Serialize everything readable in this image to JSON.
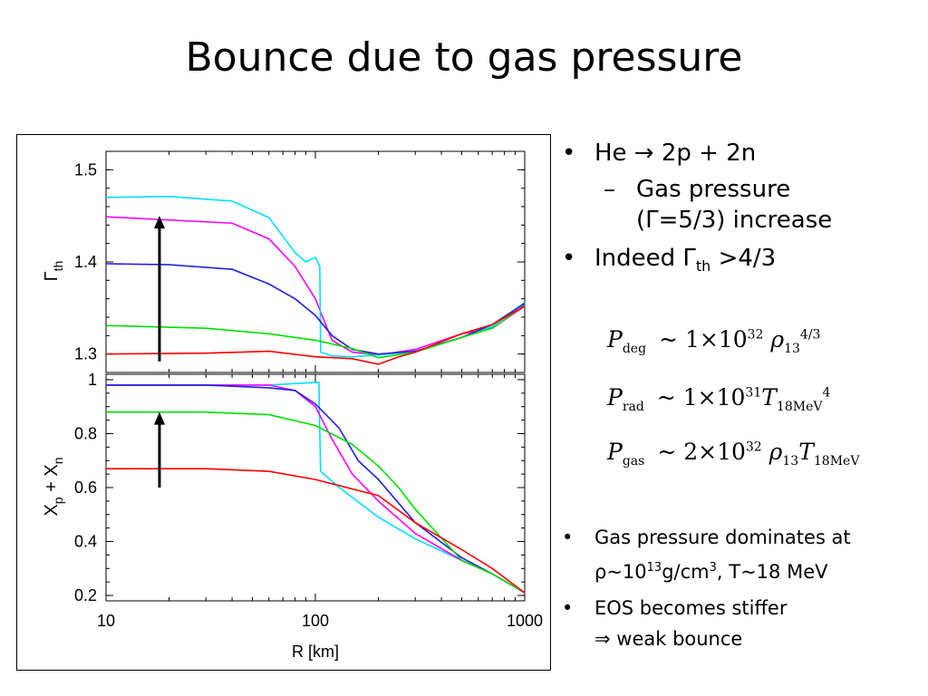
{
  "title": "Bounce due to gas pressure",
  "chart_data": [
    {
      "type": "line",
      "ylabel": "Γ_th",
      "ylim": [
        1.28,
        1.52
      ],
      "yticks": [
        "1.3",
        "1.4",
        "1.5"
      ],
      "xscale": "log",
      "xlim": [
        10,
        1000
      ],
      "series": [
        {
          "color": "#ff00ff",
          "x": [
            10,
            40,
            60,
            80,
            100,
            120,
            150,
            200,
            300,
            500,
            700,
            1000
          ],
          "y": [
            1.449,
            1.442,
            1.425,
            1.395,
            1.36,
            1.315,
            1.302,
            1.299,
            1.305,
            1.322,
            1.328,
            1.352
          ]
        },
        {
          "color": "#00e0ff",
          "x": [
            10,
            20,
            40,
            60,
            80,
            90,
            100,
            105,
            106,
            120,
            150,
            200,
            300,
            500,
            700,
            1000
          ],
          "y": [
            1.47,
            1.471,
            1.466,
            1.448,
            1.41,
            1.4,
            1.405,
            1.395,
            1.302,
            1.298,
            1.297,
            1.299,
            1.303,
            1.318,
            1.33,
            1.356
          ]
        },
        {
          "color": "#2020e0",
          "x": [
            10,
            20,
            40,
            60,
            80,
            100,
            120,
            150,
            200,
            300,
            500,
            700,
            1000
          ],
          "y": [
            1.398,
            1.397,
            1.392,
            1.376,
            1.36,
            1.342,
            1.32,
            1.305,
            1.3,
            1.303,
            1.318,
            1.332,
            1.355
          ]
        },
        {
          "color": "#00e000",
          "x": [
            10,
            30,
            60,
            100,
            150,
            200,
            300,
            500,
            700,
            1000
          ],
          "y": [
            1.331,
            1.328,
            1.322,
            1.315,
            1.306,
            1.296,
            1.302,
            1.318,
            1.328,
            1.353
          ]
        },
        {
          "color": "#ff0000",
          "x": [
            10,
            30,
            60,
            100,
            150,
            200,
            250,
            300,
            500,
            700,
            1000
          ],
          "y": [
            1.3,
            1.301,
            1.303,
            1.297,
            1.295,
            1.289,
            1.297,
            1.302,
            1.322,
            1.332,
            1.352
          ]
        }
      ]
    },
    {
      "type": "line",
      "ylabel": "X_p + X_n",
      "xlabel": "R [km]",
      "xscale": "log",
      "xlim": [
        10,
        1000
      ],
      "ylim": [
        0.18,
        1.02
      ],
      "yticks": [
        "0.2",
        "0.4",
        "0.6",
        "0.8",
        "1"
      ],
      "xticks": [
        "10",
        "100",
        "1000"
      ],
      "series": [
        {
          "color": "#00e0ff",
          "x": [
            10,
            30,
            60,
            100,
            104,
            105,
            106,
            130,
            200,
            300,
            500,
            700,
            1000
          ],
          "y": [
            0.98,
            0.98,
            0.98,
            0.99,
            0.99,
            0.8,
            0.66,
            0.6,
            0.49,
            0.41,
            0.33,
            0.28,
            0.21
          ]
        },
        {
          "color": "#ff00ff",
          "x": [
            10,
            30,
            60,
            80,
            100,
            120,
            150,
            200,
            300,
            500,
            700,
            1000
          ],
          "y": [
            0.98,
            0.98,
            0.98,
            0.96,
            0.9,
            0.78,
            0.65,
            0.55,
            0.43,
            0.33,
            0.28,
            0.21
          ]
        },
        {
          "color": "#2020e0",
          "x": [
            10,
            30,
            60,
            80,
            100,
            130,
            160,
            200,
            300,
            500,
            700,
            1000
          ],
          "y": [
            0.98,
            0.98,
            0.97,
            0.96,
            0.91,
            0.82,
            0.7,
            0.63,
            0.47,
            0.34,
            0.28,
            0.21
          ]
        },
        {
          "color": "#00e000",
          "x": [
            10,
            30,
            60,
            100,
            150,
            200,
            250,
            300,
            500,
            700,
            1000
          ],
          "y": [
            0.88,
            0.88,
            0.87,
            0.83,
            0.76,
            0.68,
            0.6,
            0.52,
            0.33,
            0.28,
            0.21
          ]
        },
        {
          "color": "#ff0000",
          "x": [
            10,
            30,
            60,
            100,
            200,
            300,
            500,
            700,
            1000
          ],
          "y": [
            0.67,
            0.67,
            0.66,
            0.63,
            0.57,
            0.47,
            0.37,
            0.3,
            0.21
          ]
        }
      ]
    }
  ],
  "bullets": {
    "b1": "He → 2p + 2n",
    "b1_sub_line1": "Gas pressure",
    "b1_sub_line2": "(Γ=5/3) increase",
    "b2_pre": "Indeed  Γ",
    "b2_sub": "th",
    "b2_post": " >4/3",
    "b3_line1": "Gas pressure dominates at",
    "b3_line2_pre": "ρ~10",
    "b3_sup": "13",
    "b3_line2_mid": "g/cm",
    "b3_sup2": "3",
    "b3_line2_post": ", T~18 MeV",
    "b4_line1": "EOS becomes stiffer",
    "b4_line2": "⇒ weak bounce"
  },
  "equations": {
    "e1": {
      "lhs": "P",
      "lhs_sub": "deg",
      "coef": "~ 1×10",
      "exp": "32",
      "var": "ρ",
      "var_sub": "13",
      "var_sup": "4/3"
    },
    "e2": {
      "lhs": "P",
      "lhs_sub": "rad",
      "coef": "~ 1×10",
      "exp": "31",
      "var": "T",
      "var_sub": "18MeV",
      "var_sup": "4"
    },
    "e3": {
      "lhs": "P",
      "lhs_sub": "gas",
      "coef": "~ 2×10",
      "exp": "32",
      "var": "ρ",
      "var_sub": "13",
      "var2": "T",
      "var2_sub": "18MeV"
    }
  },
  "bullet_glyph": "•",
  "dash_glyph": "–"
}
